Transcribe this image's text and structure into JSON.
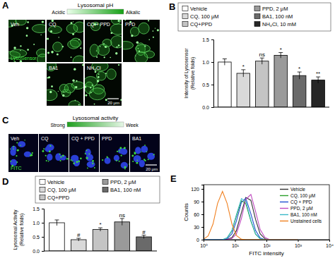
{
  "image_panels": [
    {
      "panel_label": "A",
      "scale": {
        "title": "Lysosomal pH",
        "low": "Acidic",
        "high": "Alkalic"
      },
      "images": [
        {
          "label": "Veh",
          "stain": "LysoSensor"
        },
        {
          "label": "CQ"
        },
        {
          "label": "CQ + PPD"
        },
        {
          "label": "PPD"
        },
        {
          "label": "BA1"
        },
        {
          "label": "NH₄Cl",
          "scale_bar": "20 μm"
        }
      ]
    },
    {
      "panel_label": "C",
      "scale": {
        "title": "Lysosomal activity",
        "low": "Strong",
        "high": "Week"
      },
      "images": [
        {
          "label": "Veh",
          "stain": "FITC"
        },
        {
          "label": "CQ"
        },
        {
          "label": "CQ + PPD"
        },
        {
          "label": "PPD"
        },
        {
          "label": "BA1",
          "scale_bar": "20 μm"
        }
      ]
    }
  ],
  "chart_data": [
    {
      "type": "bar",
      "panel_label": "B",
      "ylabel": [
        "Intensity of Lysosensor",
        "(Relative folds)"
      ],
      "categories": [
        "Vehicle",
        "CQ, 100 μM",
        "CQ+PPD",
        "PPD, 2 μM",
        "BA1, 100 nM",
        "NH₄Cl, 10 mM"
      ],
      "values": [
        1.0,
        0.75,
        1.02,
        1.15,
        0.7,
        0.6
      ],
      "errors": [
        0.07,
        0.08,
        0.07,
        0.06,
        0.08,
        0.07
      ],
      "colors": [
        "#ffffff",
        "#d9d9d9",
        "#c4c4c4",
        "#9a9a9a",
        "#6a6a6a",
        "#262626"
      ],
      "ylim": [
        0,
        1.5
      ],
      "yticks": [
        {
          "value": 0,
          "label": "0.0"
        },
        0.5,
        {
          "value": 1,
          "label": "1.0"
        },
        1.5
      ],
      "annotations": [
        {
          "category": "CQ, 100 μM",
          "text": "*"
        },
        {
          "category": "CQ+PPD",
          "text": "ns"
        },
        {
          "category": "PPD, 2 μM",
          "text": "*"
        },
        {
          "category": "BA1, 100 nM",
          "text": "*"
        },
        {
          "category": "NH₄Cl, 10 mM",
          "text": "**"
        }
      ],
      "legend": "top",
      "tick_labels": "y"
    },
    {
      "type": "bar",
      "panel_label": "D",
      "ylabel": [
        "Lysosomal Activity",
        "(Relative folds)"
      ],
      "categories": [
        "Vehicle",
        "CQ, 100 μM",
        "CQ+PPD",
        "PPD, 2 μM",
        "BA1, 100 nM"
      ],
      "values": [
        1.0,
        0.4,
        0.76,
        1.03,
        0.5
      ],
      "errors": [
        0.1,
        0.05,
        0.06,
        0.12,
        0.06
      ],
      "colors": [
        "#ffffff",
        "#d9d9d9",
        "#c4c4c4",
        "#9a9a9a",
        "#6a6a6a"
      ],
      "ylim": [
        0,
        1.5
      ],
      "yticks": [
        {
          "value": 0,
          "label": "0.0"
        },
        0.5,
        {
          "value": 1,
          "label": "1.0"
        },
        1.5
      ],
      "annotations": [
        {
          "category": "CQ, 100 μM",
          "text": "#"
        },
        {
          "category": "CQ+PPD",
          "text": "*"
        },
        {
          "category": "PPD, 2 μM",
          "text": "ns"
        },
        {
          "category": "BA1, 100 nM",
          "text": "#"
        }
      ],
      "legend": "top",
      "tick_labels": "y"
    },
    {
      "type": "line",
      "panel_label": "E",
      "xlabel": "FITC intensity",
      "ylabel": "Counts",
      "x": [
        1,
        1.4,
        2,
        2.8,
        4,
        5.6,
        8,
        11,
        16,
        22,
        32,
        45,
        63,
        90,
        130,
        180,
        250,
        400,
        1000
      ],
      "series": [
        {
          "name": "Vehicle",
          "color": "#333333",
          "values": [
            0,
            0,
            0,
            0,
            0,
            1,
            5,
            21,
            64,
            100,
            93,
            48,
            14,
            2,
            0,
            0,
            0,
            0,
            0
          ]
        },
        {
          "name": "CQ, 100 μM",
          "color": "#2ca02c",
          "values": [
            0,
            0,
            0,
            0,
            0,
            4,
            21,
            55,
            92,
            86,
            44,
            13,
            2,
            0,
            0,
            0,
            0,
            0,
            0
          ]
        },
        {
          "name": "CQ + PPD",
          "color": "#1f4fd1",
          "values": [
            0,
            0,
            0,
            0,
            0,
            2,
            14,
            43,
            88,
            98,
            61,
            22,
            4,
            0,
            0,
            0,
            0,
            0,
            0
          ]
        },
        {
          "name": "PPD, 2 μM",
          "color": "#c04bc0",
          "values": [
            0,
            0,
            0,
            0,
            0,
            0,
            3,
            13,
            50,
            95,
            107,
            67,
            24,
            5,
            0,
            0,
            0,
            0,
            0
          ]
        },
        {
          "name": "BA1, 100 nM",
          "color": "#3bb8c8",
          "values": [
            0,
            0,
            0,
            0,
            0,
            4,
            22,
            58,
            97,
            91,
            46,
            14,
            2,
            0,
            0,
            0,
            0,
            0,
            0
          ]
        },
        {
          "name": "Unstained cells",
          "color": "#f08020",
          "values": [
            1,
            9,
            37,
            86,
            114,
            86,
            37,
            10,
            1,
            0,
            0,
            0,
            0,
            0,
            0,
            0,
            0,
            0,
            0
          ]
        }
      ],
      "log": "x",
      "xlim": [
        1,
        10000
      ],
      "xticks": [
        {
          "value": 1,
          "label": "10⁰"
        },
        {
          "value": 10,
          "label": "10¹"
        },
        {
          "value": 100,
          "label": "10²"
        },
        {
          "value": 1000,
          "label": "10³"
        },
        {
          "value": 10000,
          "label": "10⁴"
        }
      ],
      "ylim": [
        0,
        130
      ],
      "yticks": [
        0,
        30,
        60,
        90,
        120
      ],
      "legend": "upper right"
    }
  ]
}
